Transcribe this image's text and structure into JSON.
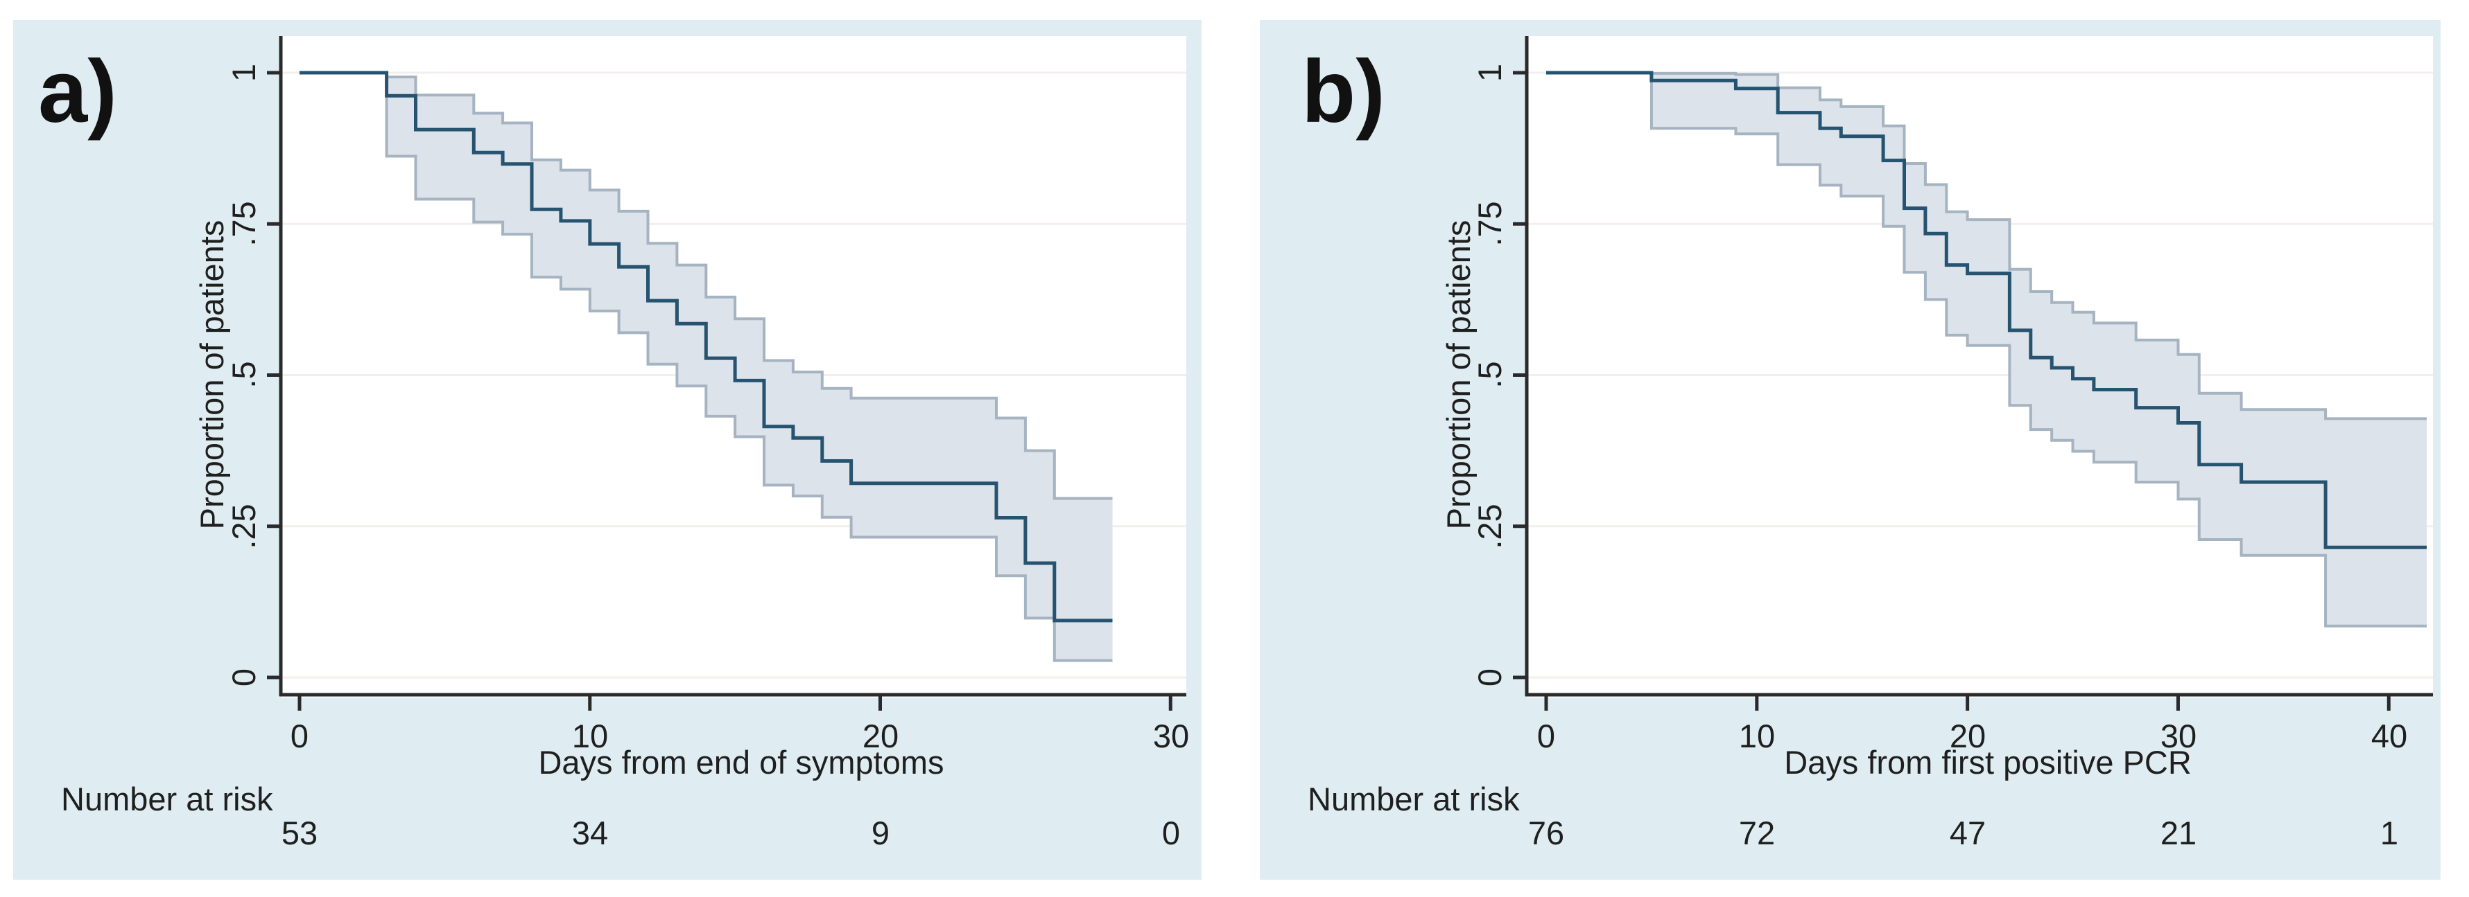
{
  "colors": {
    "page_bg": "#ffffff",
    "panel_bg": "#dfedf2",
    "plot_bg": "#ffffff",
    "grid": "#f2efee",
    "axis": "#2a2a2a",
    "text": "#1f1f1f",
    "km_line": "#26536f",
    "ci_fill": "#dce3eb",
    "ci_edge": "#a6b3c0"
  },
  "chart_data": [
    {
      "type": "line",
      "subtype": "kaplan-meier-step",
      "title": "a)",
      "xlabel": "Days from end of symptoms",
      "ylabel": "Proportion of patients",
      "xlim": [
        0,
        30.4
      ],
      "ylim": [
        0,
        1
      ],
      "grid": "horizontal",
      "legend": "none",
      "xticks": [
        0,
        10,
        20,
        30
      ],
      "xtick_labels": [
        "0",
        "10",
        "20",
        "30"
      ],
      "yticks": [
        0,
        0.25,
        0.5,
        0.75,
        1
      ],
      "ytick_labels": [
        "0",
        ".25",
        ".5",
        ".75",
        "1"
      ],
      "series": [
        {
          "name": "KM estimate",
          "x": [
            0,
            3,
            4,
            6,
            7,
            8,
            9,
            10,
            11,
            12,
            13,
            14,
            15,
            16,
            17,
            18,
            19,
            24,
            25,
            26,
            28
          ],
          "y": [
            1,
            0.962,
            0.906,
            0.868,
            0.849,
            0.774,
            0.755,
            0.717,
            0.679,
            0.623,
            0.585,
            0.528,
            0.491,
            0.415,
            0.396,
            0.358,
            0.321,
            0.264,
            0.189,
            0.094,
            0.094
          ]
        },
        {
          "name": "95% CI upper",
          "x": [
            0,
            3,
            4,
            6,
            7,
            8,
            9,
            10,
            11,
            12,
            13,
            14,
            15,
            16,
            17,
            18,
            19,
            24,
            25,
            26,
            28
          ],
          "y": [
            1,
            0.993,
            0.963,
            0.933,
            0.917,
            0.856,
            0.839,
            0.806,
            0.771,
            0.718,
            0.682,
            0.629,
            0.593,
            0.524,
            0.505,
            0.478,
            0.462,
            0.429,
            0.375,
            0.296,
            0.296
          ]
        },
        {
          "name": "95% CI lower",
          "x": [
            0,
            3,
            4,
            6,
            7,
            8,
            9,
            10,
            11,
            12,
            13,
            14,
            15,
            16,
            17,
            18,
            19,
            24,
            25,
            26,
            28
          ],
          "y": [
            1,
            0.862,
            0.791,
            0.753,
            0.733,
            0.662,
            0.642,
            0.606,
            0.57,
            0.518,
            0.482,
            0.432,
            0.398,
            0.318,
            0.3,
            0.265,
            0.232,
            0.168,
            0.098,
            0.028,
            0.028
          ]
        }
      ],
      "risk_table": {
        "label": "Number at risk",
        "times": [
          0,
          10,
          20,
          30
        ],
        "counts": [
          "53",
          "34",
          "9",
          "0"
        ]
      }
    },
    {
      "type": "line",
      "subtype": "kaplan-meier-step",
      "title": "b)",
      "xlabel": "Days from first positive PCR",
      "ylabel": "Proportion of patients",
      "xlim": [
        0,
        41.9
      ],
      "ylim": [
        0,
        1
      ],
      "grid": "horizontal",
      "legend": "none",
      "xticks": [
        0,
        10,
        20,
        30,
        40
      ],
      "xtick_labels": [
        "0",
        "10",
        "20",
        "30",
        "40"
      ],
      "yticks": [
        0,
        0.25,
        0.5,
        0.75,
        1
      ],
      "ytick_labels": [
        "0",
        ".25",
        ".5",
        ".75",
        "1"
      ],
      "series": [
        {
          "name": "KM estimate",
          "x": [
            0,
            5,
            9,
            11,
            13,
            14,
            16,
            17,
            18,
            19,
            20,
            22,
            23,
            24,
            25,
            26,
            28,
            30,
            31,
            33,
            37,
            41.8
          ],
          "y": [
            1,
            0.987,
            0.974,
            0.934,
            0.908,
            0.895,
            0.855,
            0.776,
            0.734,
            0.682,
            0.668,
            0.574,
            0.529,
            0.512,
            0.494,
            0.476,
            0.446,
            0.421,
            0.352,
            0.323,
            0.215,
            0.215
          ]
        },
        {
          "name": "95% CI upper",
          "x": [
            0,
            5,
            9,
            11,
            13,
            14,
            16,
            17,
            18,
            19,
            20,
            22,
            23,
            24,
            25,
            26,
            28,
            30,
            31,
            33,
            37,
            41.8
          ],
          "y": [
            1,
            0.999,
            0.997,
            0.975,
            0.955,
            0.944,
            0.912,
            0.85,
            0.815,
            0.77,
            0.757,
            0.675,
            0.638,
            0.62,
            0.604,
            0.586,
            0.558,
            0.534,
            0.47,
            0.443,
            0.428,
            0.428
          ]
        },
        {
          "name": "95% CI lower",
          "x": [
            0,
            5,
            9,
            11,
            13,
            14,
            16,
            17,
            18,
            19,
            20,
            22,
            23,
            24,
            25,
            26,
            28,
            30,
            31,
            33,
            37,
            41.8
          ],
          "y": [
            1,
            0.908,
            0.899,
            0.848,
            0.814,
            0.796,
            0.746,
            0.67,
            0.625,
            0.566,
            0.549,
            0.45,
            0.41,
            0.392,
            0.374,
            0.356,
            0.323,
            0.295,
            0.228,
            0.202,
            0.085,
            0.085
          ]
        }
      ],
      "risk_table": {
        "label": "Number at risk",
        "times": [
          0,
          10,
          20,
          30,
          40
        ],
        "counts": [
          "76",
          "72",
          "47",
          "21",
          "1"
        ]
      }
    }
  ]
}
